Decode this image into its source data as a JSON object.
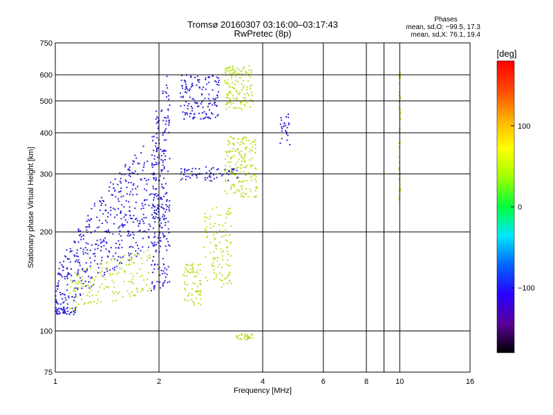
{
  "chart_data": {
    "type": "scatter",
    "title": "Tromsø 20160307 03:16:00–03:17:43",
    "subtitle": "RwPretec (8p)",
    "xlabel": "Frequency [MHz]",
    "ylabel": "Stationary phase Virtual Height [km]",
    "x_scale": "log",
    "y_scale": "log",
    "xlim": [
      1,
      16
    ],
    "ylim": [
      75,
      750
    ],
    "x_ticks": [
      1,
      2,
      4,
      6,
      8,
      10,
      16
    ],
    "x_tick_labels": [
      "1",
      "2",
      "4",
      "6",
      "8",
      "10",
      "16"
    ],
    "y_ticks": [
      75,
      100,
      200,
      300,
      400,
      500,
      600,
      750
    ],
    "y_tick_labels": [
      "75",
      "100",
      "200",
      "300",
      "400",
      "500",
      "600",
      "750"
    ],
    "grid": true,
    "stats": {
      "heading": "Phases",
      "line_o": "mean, sd,O: −99.5, 17.3",
      "line_x": "mean, sd,X:  76.1, 19.4"
    },
    "colorbar": {
      "unit_label": "[deg]",
      "range": [
        -180,
        180
      ],
      "ticks": [
        100,
        0,
        -100
      ],
      "tick_labels": [
        "100",
        "0",
        "−100"
      ],
      "colors": [
        "#000000",
        "#5a009a",
        "#2a00ff",
        "#0064ff",
        "#00e6ff",
        "#00ff3c",
        "#9cff00",
        "#ffff00",
        "#ffb000",
        "#ff4800",
        "#ff0000"
      ]
    },
    "series": [
      {
        "polarization": "O",
        "color": "#2a20d8",
        "clusters": [
          {
            "f_min": 1.0,
            "f_max": 2.1,
            "h_lo_start": 110,
            "h_lo_end": 190,
            "h_hi_start": 150,
            "h_hi_end": 420,
            "n": 520
          },
          {
            "f_min": 1.0,
            "f_max": 1.15,
            "h_lo_start": 112,
            "h_lo_end": 112,
            "h_hi_start": 118,
            "h_hi_end": 118,
            "n": 40
          },
          {
            "f_min": 1.9,
            "f_max": 2.15,
            "h_lo_start": 130,
            "h_lo_end": 140,
            "h_hi_start": 400,
            "h_hi_end": 650,
            "n": 200
          },
          {
            "f_min": 2.3,
            "f_max": 3.0,
            "h_lo_start": 440,
            "h_lo_end": 440,
            "h_hi_start": 600,
            "h_hi_end": 600,
            "n": 140
          },
          {
            "f_min": 2.3,
            "f_max": 3.4,
            "h_lo_start": 285,
            "h_lo_end": 285,
            "h_hi_start": 315,
            "h_hi_end": 315,
            "n": 70
          },
          {
            "f_min": 4.5,
            "f_max": 4.8,
            "h_lo_start": 360,
            "h_lo_end": 360,
            "h_hi_start": 460,
            "h_hi_end": 460,
            "n": 25
          }
        ]
      },
      {
        "polarization": "X",
        "color": "#b8e020",
        "clusters": [
          {
            "f_min": 1.1,
            "f_max": 1.9,
            "h_lo_start": 115,
            "h_lo_end": 130,
            "h_hi_start": 150,
            "h_hi_end": 180,
            "n": 160
          },
          {
            "f_min": 2.35,
            "f_max": 2.65,
            "h_lo_start": 120,
            "h_lo_end": 120,
            "h_hi_start": 160,
            "h_hi_end": 160,
            "n": 70
          },
          {
            "f_min": 2.7,
            "f_max": 3.25,
            "h_lo_start": 135,
            "h_lo_end": 135,
            "h_hi_start": 240,
            "h_hi_end": 240,
            "n": 110
          },
          {
            "f_min": 3.1,
            "f_max": 3.85,
            "h_lo_start": 255,
            "h_lo_end": 255,
            "h_hi_start": 390,
            "h_hi_end": 390,
            "n": 170
          },
          {
            "f_min": 3.1,
            "f_max": 3.75,
            "h_lo_start": 470,
            "h_lo_end": 470,
            "h_hi_start": 640,
            "h_hi_end": 640,
            "n": 140
          },
          {
            "f_min": 3.35,
            "f_max": 3.75,
            "h_lo_start": 94,
            "h_lo_end": 94,
            "h_hi_start": 98,
            "h_hi_end": 98,
            "n": 30
          },
          {
            "f_min": 9.95,
            "f_max": 10.05,
            "h_lo_start": 240,
            "h_lo_end": 240,
            "h_hi_start": 610,
            "h_hi_end": 610,
            "n": 45
          }
        ]
      }
    ]
  }
}
